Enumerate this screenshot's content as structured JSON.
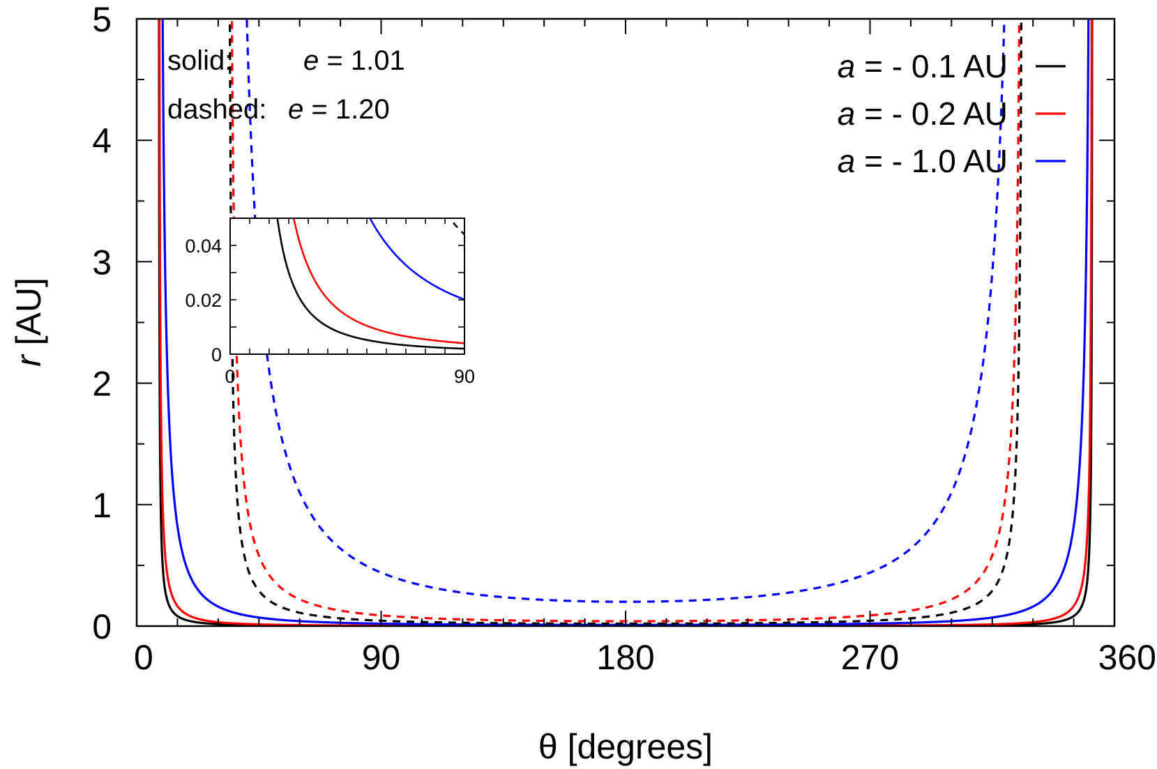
{
  "chart_data": {
    "type": "line",
    "title": "",
    "xlabel": "θ [degrees]",
    "ylabel_var": "r",
    "ylabel_unit": "[AU]",
    "xlim": [
      0,
      360
    ],
    "ylim": [
      0,
      5
    ],
    "xticks": [
      0,
      90,
      180,
      270,
      360
    ],
    "yticks": [
      0,
      1,
      2,
      3,
      4,
      5
    ],
    "grid": false,
    "legend_position": "top-right",
    "annotations": {
      "solid_label": "solid:",
      "solid_eq_var": "e",
      "solid_eq_value": " = 1.01",
      "dashed_label": "dashed:",
      "dashed_eq_var": "e",
      "dashed_eq_value": " = 1.20"
    },
    "series": [
      {
        "a": -0.1,
        "e": 1.01,
        "style": "solid",
        "color": "#000000",
        "legend_var": "a",
        "legend_value": " = - 0.1 AU"
      },
      {
        "a": -0.2,
        "e": 1.01,
        "style": "solid",
        "color": "#ff0000",
        "legend_var": "a",
        "legend_value": " = - 0.2 AU"
      },
      {
        "a": -1.0,
        "e": 1.01,
        "style": "solid",
        "color": "#0000ff",
        "legend_var": "a",
        "legend_value": " = - 1.0 AU"
      },
      {
        "a": -0.1,
        "e": 1.2,
        "style": "dashed",
        "color": "#000000"
      },
      {
        "a": -0.2,
        "e": 1.2,
        "style": "dashed",
        "color": "#ff0000"
      },
      {
        "a": -1.0,
        "e": 1.2,
        "style": "dashed",
        "color": "#0000ff"
      }
    ],
    "inset": {
      "xlim": [
        0,
        90
      ],
      "ylim": [
        0,
        0.05
      ],
      "xticks": [
        0,
        90
      ],
      "yticks": [
        0,
        0.02,
        0.04
      ],
      "ytick_labels": [
        "0",
        "0.02",
        "0.04"
      ]
    }
  }
}
